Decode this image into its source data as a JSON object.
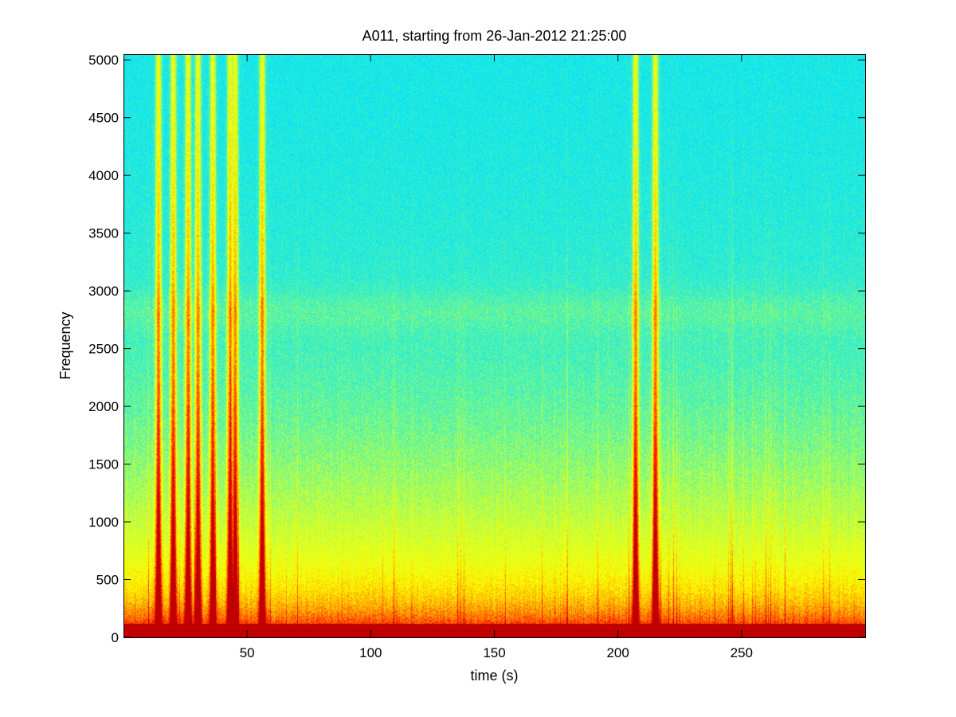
{
  "chart_data": {
    "type": "heatmap",
    "title": "A011, starting from 26-Jan-2012 21:25:00",
    "xlabel": "time (s)",
    "ylabel": "Frequency",
    "xlim": [
      0,
      300
    ],
    "ylim": [
      0,
      5050
    ],
    "x_ticks": [
      50,
      100,
      150,
      200,
      250
    ],
    "y_ticks": [
      0,
      500,
      1000,
      1500,
      2000,
      2500,
      3000,
      3500,
      4000,
      4500,
      5000
    ],
    "colormap": "jet",
    "colorscale_colors": [
      "#00e0ff",
      "#40f0c0",
      "#c0ff40",
      "#ffff00",
      "#ffa000",
      "#ff2000",
      "#c00000"
    ],
    "grid": false,
    "broadband_events_s": [
      14,
      20,
      26,
      30,
      36,
      43,
      45,
      56,
      207,
      215
    ],
    "elevated_band_hz": [
      2700,
      2950
    ]
  }
}
